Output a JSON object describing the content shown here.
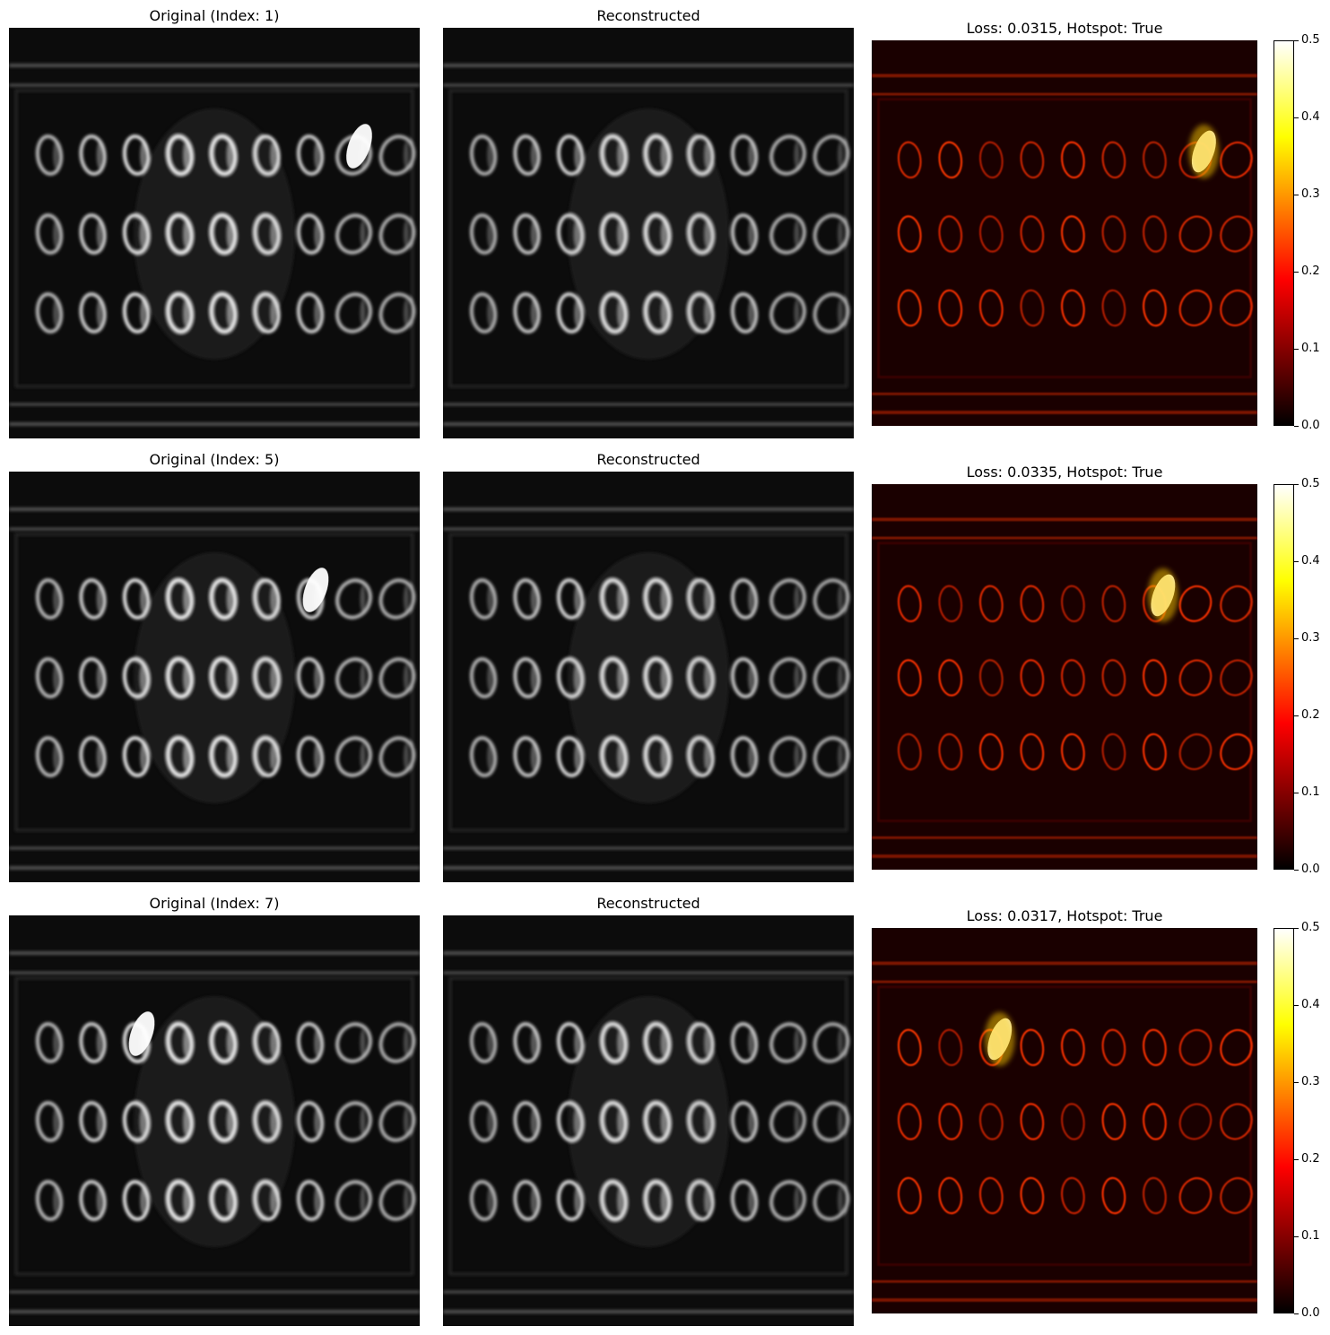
{
  "rows": [
    {
      "original_title": "Original (Index: 1)",
      "reconstructed_title": "Reconstructed",
      "error_title": "Loss: 0.0315, Hotspot: True",
      "hotspot": {
        "ring_row": 0,
        "ring_col": 7
      }
    },
    {
      "original_title": "Original (Index: 5)",
      "reconstructed_title": "Reconstructed",
      "error_title": "Loss: 0.0335, Hotspot: True",
      "hotspot": {
        "ring_row": 0,
        "ring_col": 6
      }
    },
    {
      "original_title": "Original (Index: 7)",
      "reconstructed_title": "Reconstructed",
      "error_title": "Loss: 0.0317, Hotspot: True",
      "hotspot": {
        "ring_row": 0,
        "ring_col": 2
      }
    }
  ],
  "colorbar": {
    "ticks": [
      "0.0",
      "0.1",
      "0.2",
      "0.3",
      "0.4",
      "0.5"
    ],
    "range": [
      0.0,
      0.5
    ],
    "colormap": "hot"
  },
  "colors": {
    "background": "#ffffff",
    "image_bg": "#0c0c0c",
    "heat_bg": "#1a0000"
  }
}
